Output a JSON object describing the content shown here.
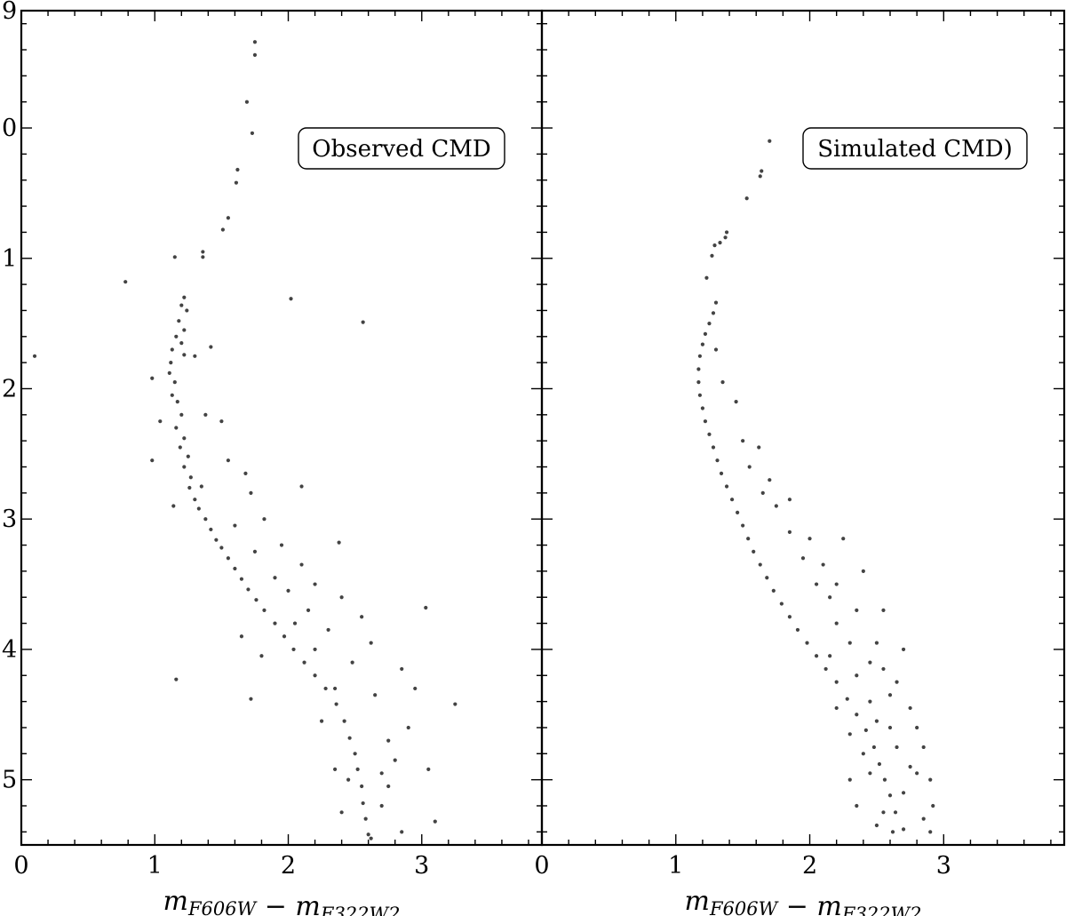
{
  "chart_data": [
    {
      "type": "scatter",
      "panel": "left",
      "annotation": "Observed CMD",
      "xlabel": "m_F606W − m_F322W2",
      "xlim": [
        0,
        3.9
      ],
      "ylim": [
        5.5,
        -0.9
      ],
      "x_inverted": false,
      "y_inverted": true,
      "grid": false,
      "xticks": [
        "0",
        "1",
        "2",
        "3"
      ],
      "yticks": [
        "9",
        "0",
        "1",
        "2",
        "3",
        "4",
        "5"
      ],
      "series": [
        {
          "points": [
            [
              1.75,
              -0.66
            ],
            [
              1.75,
              -0.56
            ],
            [
              1.69,
              -0.2
            ],
            [
              1.73,
              0.04
            ],
            [
              1.62,
              0.32
            ],
            [
              1.61,
              0.42
            ],
            [
              1.55,
              0.69
            ],
            [
              1.51,
              0.78
            ],
            [
              1.36,
              0.95
            ],
            [
              1.36,
              0.99
            ],
            [
              1.15,
              0.99
            ],
            [
              0.78,
              1.18
            ],
            [
              0.1,
              1.75
            ],
            [
              2.02,
              1.31
            ],
            [
              2.56,
              1.49
            ],
            [
              1.22,
              1.3
            ],
            [
              1.2,
              1.36
            ],
            [
              1.24,
              1.4
            ],
            [
              1.18,
              1.48
            ],
            [
              1.22,
              1.55
            ],
            [
              1.16,
              1.6
            ],
            [
              1.2,
              1.65
            ],
            [
              1.13,
              1.7
            ],
            [
              1.22,
              1.74
            ],
            [
              1.12,
              1.8
            ],
            [
              1.11,
              1.88
            ],
            [
              1.15,
              1.95
            ],
            [
              1.13,
              2.05
            ],
            [
              1.17,
              2.1
            ],
            [
              1.2,
              2.2
            ],
            [
              1.16,
              2.3
            ],
            [
              1.22,
              2.38
            ],
            [
              1.19,
              2.45
            ],
            [
              1.25,
              2.52
            ],
            [
              1.22,
              2.6
            ],
            [
              1.27,
              2.68
            ],
            [
              1.26,
              2.76
            ],
            [
              1.3,
              2.85
            ],
            [
              1.33,
              2.92
            ],
            [
              1.38,
              3.0
            ],
            [
              1.42,
              3.08
            ],
            [
              1.46,
              3.16
            ],
            [
              1.5,
              3.22
            ],
            [
              1.55,
              3.3
            ],
            [
              1.6,
              3.38
            ],
            [
              1.65,
              3.46
            ],
            [
              1.7,
              3.54
            ],
            [
              1.76,
              3.62
            ],
            [
              1.82,
              3.7
            ],
            [
              1.9,
              3.8
            ],
            [
              1.97,
              3.9
            ],
            [
              2.04,
              4.0
            ],
            [
              2.12,
              4.1
            ],
            [
              2.2,
              4.2
            ],
            [
              2.28,
              4.3
            ],
            [
              2.36,
              4.42
            ],
            [
              2.42,
              4.55
            ],
            [
              2.46,
              4.68
            ],
            [
              2.5,
              4.8
            ],
            [
              2.52,
              4.92
            ],
            [
              2.55,
              5.05
            ],
            [
              2.56,
              5.18
            ],
            [
              2.58,
              5.3
            ],
            [
              2.6,
              5.42
            ],
            [
              0.98,
              1.92
            ],
            [
              1.04,
              2.25
            ],
            [
              0.98,
              2.55
            ],
            [
              1.14,
              2.9
            ],
            [
              1.3,
              1.75
            ],
            [
              1.42,
              1.68
            ],
            [
              1.5,
              2.25
            ],
            [
              1.68,
              2.65
            ],
            [
              1.72,
              2.8
            ],
            [
              2.1,
              2.75
            ],
            [
              1.82,
              3.0
            ],
            [
              1.95,
              3.2
            ],
            [
              2.1,
              3.35
            ],
            [
              2.38,
              3.18
            ],
            [
              2.2,
              3.5
            ],
            [
              2.4,
              3.6
            ],
            [
              1.65,
              3.9
            ],
            [
              1.8,
              4.05
            ],
            [
              2.55,
              3.75
            ],
            [
              2.62,
              3.95
            ],
            [
              3.03,
              3.68
            ],
            [
              2.85,
              4.15
            ],
            [
              2.95,
              4.3
            ],
            [
              3.25,
              4.42
            ],
            [
              1.16,
              4.23
            ],
            [
              1.72,
              4.38
            ],
            [
              3.05,
              4.92
            ],
            [
              3.1,
              5.32
            ],
            [
              2.75,
              4.7
            ],
            [
              2.9,
              4.6
            ],
            [
              2.35,
              4.92
            ],
            [
              2.7,
              5.2
            ],
            [
              2.85,
              5.4
            ],
            [
              2.4,
              5.25
            ],
            [
              2.25,
              4.55
            ],
            [
              2.7,
              4.95
            ],
            [
              1.38,
              2.2
            ],
            [
              1.55,
              2.55
            ],
            [
              1.35,
              2.75
            ],
            [
              1.6,
              3.05
            ],
            [
              1.75,
              3.25
            ],
            [
              2.0,
              3.55
            ],
            [
              2.15,
              3.7
            ],
            [
              2.3,
              3.85
            ],
            [
              2.48,
              4.1
            ],
            [
              2.65,
              4.35
            ],
            [
              2.8,
              4.85
            ],
            [
              2.45,
              5.0
            ],
            [
              2.62,
              5.45
            ],
            [
              2.75,
              5.05
            ],
            [
              2.2,
              4.0
            ],
            [
              2.05,
              3.8
            ],
            [
              1.9,
              3.45
            ],
            [
              2.35,
              4.3
            ]
          ]
        }
      ]
    },
    {
      "type": "scatter",
      "panel": "right",
      "annotation": "Simulated CMD)",
      "xlabel": "m_F606W − m_F322W2",
      "xlim": [
        0,
        3.9
      ],
      "ylim": [
        5.5,
        -0.9
      ],
      "x_inverted": false,
      "y_inverted": true,
      "grid": false,
      "xticks": [
        "0",
        "1",
        "2",
        "3"
      ],
      "yticks": [],
      "series": [
        {
          "points": [
            [
              1.7,
              0.1
            ],
            [
              1.64,
              0.33
            ],
            [
              1.63,
              0.37
            ],
            [
              1.53,
              0.54
            ],
            [
              1.38,
              0.8
            ],
            [
              1.37,
              0.84
            ],
            [
              1.33,
              0.88
            ],
            [
              1.29,
              0.9
            ],
            [
              1.27,
              0.98
            ],
            [
              1.23,
              1.15
            ],
            [
              1.3,
              1.34
            ],
            [
              1.28,
              1.42
            ],
            [
              1.25,
              1.5
            ],
            [
              1.22,
              1.58
            ],
            [
              1.2,
              1.66
            ],
            [
              1.18,
              1.75
            ],
            [
              1.17,
              1.85
            ],
            [
              1.17,
              1.95
            ],
            [
              1.18,
              2.05
            ],
            [
              1.2,
              2.15
            ],
            [
              1.22,
              2.25
            ],
            [
              1.25,
              2.35
            ],
            [
              1.28,
              2.45
            ],
            [
              1.31,
              2.55
            ],
            [
              1.34,
              2.65
            ],
            [
              1.38,
              2.75
            ],
            [
              1.42,
              2.85
            ],
            [
              1.46,
              2.95
            ],
            [
              1.5,
              3.05
            ],
            [
              1.54,
              3.15
            ],
            [
              1.58,
              3.25
            ],
            [
              1.63,
              3.35
            ],
            [
              1.68,
              3.45
            ],
            [
              1.73,
              3.55
            ],
            [
              1.79,
              3.65
            ],
            [
              1.85,
              3.75
            ],
            [
              1.91,
              3.85
            ],
            [
              1.98,
              3.95
            ],
            [
              2.05,
              4.05
            ],
            [
              2.12,
              4.15
            ],
            [
              2.2,
              4.25
            ],
            [
              2.28,
              4.38
            ],
            [
              2.35,
              4.5
            ],
            [
              2.42,
              4.62
            ],
            [
              2.48,
              4.75
            ],
            [
              2.52,
              4.88
            ],
            [
              2.56,
              5.0
            ],
            [
              2.6,
              5.12
            ],
            [
              2.64,
              5.25
            ],
            [
              2.7,
              5.38
            ],
            [
              1.3,
              1.7
            ],
            [
              1.35,
              1.95
            ],
            [
              1.45,
              2.1
            ],
            [
              1.5,
              2.4
            ],
            [
              1.55,
              2.6
            ],
            [
              1.65,
              2.8
            ],
            [
              1.75,
              2.9
            ],
            [
              1.85,
              3.1
            ],
            [
              1.95,
              3.3
            ],
            [
              2.05,
              3.5
            ],
            [
              2.15,
              3.6
            ],
            [
              2.2,
              3.8
            ],
            [
              2.3,
              3.95
            ],
            [
              2.45,
              4.1
            ],
            [
              2.55,
              4.15
            ],
            [
              2.65,
              4.25
            ],
            [
              2.75,
              4.45
            ],
            [
              2.8,
              4.6
            ],
            [
              2.85,
              4.75
            ],
            [
              2.9,
              5.0
            ],
            [
              2.92,
              5.2
            ],
            [
              2.9,
              5.4
            ],
            [
              2.75,
              4.9
            ],
            [
              2.6,
              4.6
            ],
            [
              2.45,
              4.4
            ],
            [
              2.35,
              4.2
            ],
            [
              1.62,
              2.45
            ],
            [
              1.85,
              2.85
            ],
            [
              2.0,
              3.15
            ],
            [
              2.2,
              3.5
            ],
            [
              2.25,
              3.15
            ],
            [
              2.4,
              3.4
            ],
            [
              2.55,
              3.7
            ],
            [
              2.7,
              4.0
            ],
            [
              2.4,
              4.8
            ],
            [
              2.3,
              5.0
            ],
            [
              2.35,
              5.2
            ],
            [
              2.5,
              5.35
            ],
            [
              2.7,
              5.1
            ],
            [
              2.85,
              5.3
            ],
            [
              2.6,
              4.35
            ],
            [
              2.5,
              4.55
            ],
            [
              2.2,
              4.45
            ],
            [
              2.3,
              4.65
            ],
            [
              2.65,
              4.75
            ],
            [
              2.8,
              4.95
            ],
            [
              1.7,
              2.7
            ],
            [
              2.1,
              3.35
            ],
            [
              2.35,
              3.7
            ],
            [
              2.5,
              3.95
            ],
            [
              2.15,
              4.05
            ],
            [
              2.45,
              4.95
            ],
            [
              2.55,
              5.25
            ],
            [
              2.62,
              5.4
            ]
          ]
        }
      ]
    }
  ]
}
